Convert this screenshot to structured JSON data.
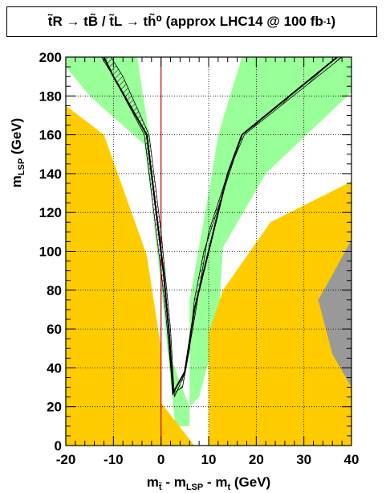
{
  "chart_data": {
    "type": "area",
    "title": "t̃_R → tB̃ / t̃_L → th̃^0 (approx LHC14 @ 100 fb^-1)",
    "title_main": "t̃R → tB̃ / t̃L → th̃⁰ (approx LHC14 @ 100 fb",
    "title_sup": "-1",
    "title_close": ")",
    "xlabel": "m_t̃ - m_LSP - m_t (GeV)",
    "xlabel_text": "m",
    "xlabel_sub1": "t̃",
    "xlabel_mid": " - m",
    "xlabel_sub2": "LSP",
    "xlabel_mid2": " - m",
    "xlabel_sub3": "t",
    "xlabel_end": " (GeV)",
    "ylabel_text": "m",
    "ylabel_sub": "LSP",
    "ylabel_end": " (GeV)",
    "xlim": [
      -20,
      40
    ],
    "ylim": [
      0,
      200
    ],
    "xticks": [
      -20,
      -10,
      0,
      10,
      20,
      30,
      40
    ],
    "xtick_labels": [
      "-20",
      "-10",
      "0",
      "10",
      "20",
      "30",
      "40"
    ],
    "yticks": [
      0,
      20,
      40,
      60,
      80,
      100,
      120,
      140,
      160,
      180,
      200
    ],
    "ytick_labels": [
      "0",
      "20",
      "40",
      "60",
      "80",
      "100",
      "120",
      "140",
      "160",
      "180",
      "200"
    ],
    "grid": true,
    "colors": {
      "orange": "#ffcc00",
      "green": "#99ff99",
      "gray": "#999999",
      "line": "#000000",
      "zero_line": "#cc0000"
    },
    "regions": {
      "orange_left": [
        [
          -20,
          0
        ],
        [
          -20,
          175
        ],
        [
          -12,
          160
        ],
        [
          -3,
          98
        ],
        [
          0,
          50
        ],
        [
          0,
          22
        ],
        [
          7,
          0
        ]
      ],
      "orange_right": [
        [
          10,
          0
        ],
        [
          10,
          58
        ],
        [
          13,
          80
        ],
        [
          23,
          115
        ],
        [
          40,
          136
        ],
        [
          40,
          0
        ]
      ],
      "gray": [
        [
          40,
          106
        ],
        [
          36,
          88
        ],
        [
          33,
          75
        ],
        [
          36,
          47
        ],
        [
          40,
          30
        ]
      ],
      "green_left": [
        [
          -20,
          200
        ],
        [
          -15,
          200
        ],
        [
          -5,
          200
        ],
        [
          -2.5,
          160
        ],
        [
          -1.8,
          120
        ],
        [
          0,
          82
        ],
        [
          3,
          10
        ],
        [
          6,
          10
        ],
        [
          6,
          75
        ],
        [
          10,
          130
        ],
        [
          12,
          160
        ],
        [
          17,
          200
        ],
        [
          40,
          200
        ],
        [
          40,
          182
        ],
        [
          22,
          140
        ],
        [
          13,
          102
        ],
        [
          12,
          62
        ],
        [
          8,
          25
        ],
        [
          6,
          20
        ],
        [
          2,
          45
        ],
        [
          0,
          90
        ],
        [
          -3.5,
          155
        ],
        [
          -15,
          180
        ],
        [
          -20,
          195
        ]
      ]
    },
    "band_left": [
      [
        -12.5,
        200
      ],
      [
        -10,
        190
      ],
      [
        -3.5,
        160
      ],
      [
        -2.5,
        140
      ],
      [
        -1,
        110
      ],
      [
        0,
        90
      ],
      [
        1,
        68
      ],
      [
        2.5,
        27
      ],
      [
        4.5,
        30
      ],
      [
        6,
        50
      ],
      [
        7,
        75
      ],
      [
        9,
        100
      ],
      [
        13,
        130
      ],
      [
        17,
        160
      ],
      [
        37,
        200
      ]
    ],
    "band_right": [
      [
        -10.5,
        200
      ],
      [
        -8,
        190
      ],
      [
        -2.5,
        160
      ],
      [
        -1.5,
        140
      ],
      [
        0,
        110
      ],
      [
        0.8,
        90
      ],
      [
        2,
        60
      ],
      [
        2.8,
        25
      ],
      [
        5,
        37
      ],
      [
        7,
        65
      ],
      [
        8,
        80
      ],
      [
        10,
        110
      ],
      [
        14,
        140
      ],
      [
        17.5,
        160
      ],
      [
        38,
        200
      ]
    ],
    "central_line": [
      [
        -12,
        200
      ],
      [
        -10,
        190
      ],
      [
        -3,
        160
      ],
      [
        -2,
        140
      ],
      [
        -0.5,
        110
      ],
      [
        0.5,
        90
      ],
      [
        1.8,
        55
      ],
      [
        2.5,
        27
      ],
      [
        5,
        38
      ],
      [
        7,
        70
      ],
      [
        8,
        80
      ],
      [
        11,
        110
      ],
      [
        14,
        140
      ],
      [
        17,
        160
      ],
      [
        37,
        200
      ]
    ]
  }
}
